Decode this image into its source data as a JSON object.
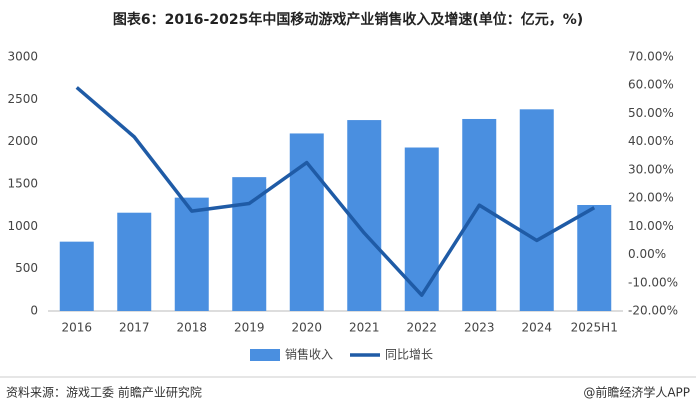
{
  "chart_data": {
    "type": "bar-line",
    "title": "图表6：2016-2025年中国移动游戏产业销售收入及增速(单位：亿元，%)",
    "categories": [
      "2016",
      "2017",
      "2018",
      "2019",
      "2020",
      "2021",
      "2022",
      "2023",
      "2024",
      "2025H1"
    ],
    "series": [
      {
        "name": "销售收入",
        "type": "bar",
        "color": "#4a8fe0",
        "values": [
          819,
          1161,
          1339,
          1581,
          2097,
          2255,
          1931,
          2268,
          2382,
          1252
        ]
      },
      {
        "name": "同比增长",
        "type": "line",
        "axis": "y2",
        "color": "#1f5ba6",
        "values": [
          59.2,
          41.7,
          15.4,
          18.1,
          32.6,
          7.6,
          -14.4,
          17.5,
          5.0,
          16.6
        ]
      }
    ],
    "ylim": [
      0,
      3000
    ],
    "yticks": [
      0,
      500,
      1000,
      1500,
      2000,
      2500,
      3000
    ],
    "y2lim": [
      -20,
      70
    ],
    "y2ticks": [
      {
        "value": -20,
        "label": "-20.00%"
      },
      {
        "value": -10,
        "label": "-10.00%"
      },
      {
        "value": 0,
        "label": "0.00%"
      },
      {
        "value": 10,
        "label": "10.00%"
      },
      {
        "value": 20,
        "label": "20.00%"
      },
      {
        "value": 30,
        "label": "30.00%"
      },
      {
        "value": 40,
        "label": "40.00%"
      },
      {
        "value": 50,
        "label": "50.00%"
      },
      {
        "value": 60,
        "label": "60.00%"
      },
      {
        "value": 70,
        "label": "70.00%"
      }
    ],
    "source": "资料来源：游戏工委 前瞻产业研究院",
    "credit": "@前瞻经济学人APP"
  }
}
